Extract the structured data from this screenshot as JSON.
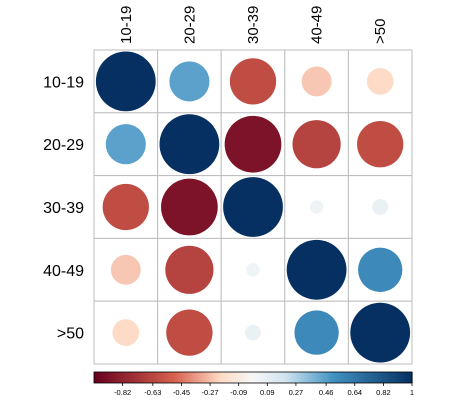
{
  "chart_data": {
    "type": "heatmap",
    "title": "",
    "xlabel": "",
    "ylabel": "",
    "row_labels": [
      "10-19",
      "20-29",
      "30-39",
      "40-49",
      ">50"
    ],
    "col_labels": [
      "10-19",
      "20-29",
      "30-39",
      "40-49",
      ">50"
    ],
    "values": [
      [
        1.0,
        0.45,
        -0.6,
        -0.25,
        -0.2
      ],
      [
        0.45,
        1.0,
        -0.9,
        -0.65,
        -0.6
      ],
      [
        -0.6,
        -0.9,
        1.0,
        0.05,
        0.07
      ],
      [
        -0.25,
        -0.65,
        0.05,
        1.0,
        0.55
      ],
      [
        -0.2,
        -0.6,
        0.07,
        0.55,
        1.0
      ]
    ],
    "colorbar": {
      "range": [
        -1,
        1
      ],
      "tick_labels": [
        "-0.82",
        "-0.63",
        "-0.45",
        "-0.27",
        "-0.09",
        "0.09",
        "0.27",
        "0.46",
        "0.64",
        "0.82",
        "1"
      ],
      "tick_values": [
        -0.82,
        -0.63,
        -0.45,
        -0.27,
        -0.09,
        0.09,
        0.27,
        0.46,
        0.64,
        0.82,
        1.0
      ],
      "placement": "bottom"
    },
    "colors": {
      "negative_strong": "#67001F",
      "negative_mid": "#D6604D",
      "negative_light": "#FDDBC7",
      "neutral": "#F7F7F7",
      "positive_light": "#D1E5F0",
      "positive_mid": "#4393C3",
      "positive_strong": "#053061",
      "grid": "#BEBEBE"
    }
  }
}
